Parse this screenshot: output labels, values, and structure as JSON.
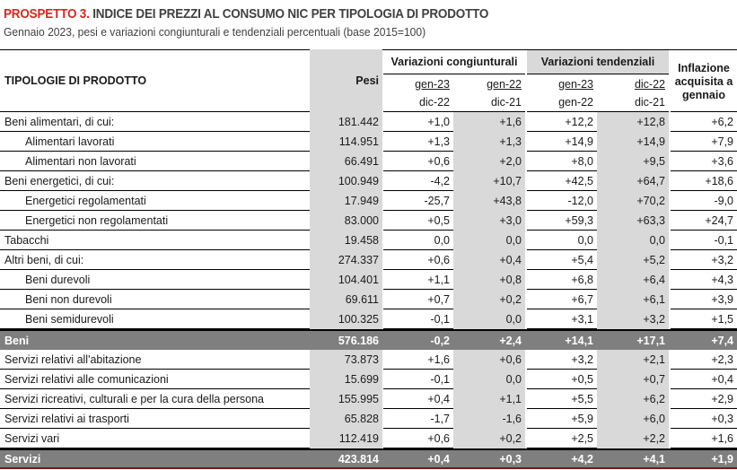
{
  "header": {
    "title_prefix": "PROSPETTO 3.",
    "title": " INDICE DEI PREZZI AL CONSUMO NIC PER TIPOLOGIA DI PRODOTTO",
    "subtitle": "Gennaio 2023, pesi e variazioni congiunturali e tendenziali percentuali (base 2015=100)"
  },
  "table": {
    "columns": {
      "label": "TIPOLOGIE DI PRODOTTO",
      "pesi": "Pesi",
      "congiunturali": "Variazioni congiunturali",
      "tendenziali": "Variazioni tendenziali",
      "inflazione": "Inflazione acquisita a gennaio",
      "sub": [
        {
          "top": "gen-23",
          "bottom": "dic-22"
        },
        {
          "top": "gen-22",
          "bottom": "dic-21"
        },
        {
          "top": "gen-23",
          "bottom": "gen-22"
        },
        {
          "top": "dic-22",
          "bottom": "dic-21"
        }
      ]
    },
    "rows": [
      {
        "label": "Beni alimentari, di cui:",
        "pesi": "181.442",
        "v": [
          "+1,0",
          "+1,6",
          "+12,2",
          "+12,8",
          "+6,2"
        ]
      },
      {
        "label": "Alimentari lavorati",
        "pesi": "114.951",
        "v": [
          "+1,3",
          "+1,3",
          "+14,9",
          "+14,9",
          "+7,9"
        ]
      },
      {
        "label": "Alimentari non lavorati",
        "pesi": "66.491",
        "v": [
          "+0,6",
          "+2,0",
          "+8,0",
          "+9,5",
          "+3,6"
        ]
      },
      {
        "label": "Beni energetici, di cui:",
        "pesi": "100.949",
        "v": [
          "-4,2",
          "+10,7",
          "+42,5",
          "+64,7",
          "+18,6"
        ]
      },
      {
        "label": "Energetici regolamentati",
        "pesi": "17.949",
        "v": [
          "-25,7",
          "+43,8",
          "-12,0",
          "+70,2",
          "-9,0"
        ]
      },
      {
        "label": "Energetici non regolamentati",
        "pesi": "83.000",
        "v": [
          "+0,5",
          "+3,0",
          "+59,3",
          "+63,3",
          "+24,7"
        ]
      },
      {
        "label": "Tabacchi",
        "pesi": "19.458",
        "v": [
          "0,0",
          "0,0",
          "0,0",
          "0,0",
          "-0,1"
        ]
      },
      {
        "label": "Altri beni, di cui:",
        "pesi": "274.337",
        "v": [
          "+0,6",
          "+0,4",
          "+5,4",
          "+5,2",
          "+3,2"
        ]
      },
      {
        "label": "Beni durevoli",
        "pesi": "104.401",
        "v": [
          "+1,1",
          "+0,8",
          "+6,8",
          "+6,4",
          "+4,3"
        ]
      },
      {
        "label": "Beni non durevoli",
        "pesi": "69.611",
        "v": [
          "+0,7",
          "+0,2",
          "+6,7",
          "+6,1",
          "+3,9"
        ]
      },
      {
        "label": "Beni semidurevoli",
        "pesi": "100.325",
        "v": [
          "-0,1",
          "0,0",
          "+3,1",
          "+3,2",
          "+1,5"
        ]
      },
      {
        "label": "Beni",
        "pesi": "576.186",
        "v": [
          "-0,2",
          "+2,4",
          "+14,1",
          "+17,1",
          "+7,4"
        ]
      },
      {
        "label": "Servizi relativi all'abitazione",
        "pesi": "73.873",
        "v": [
          "+1,6",
          "+0,6",
          "+3,2",
          "+2,1",
          "+2,3"
        ]
      },
      {
        "label": "Servizi relativi alle comunicazioni",
        "pesi": "15.699",
        "v": [
          "-0,1",
          "0,0",
          "+0,5",
          "+0,7",
          "+0,4"
        ]
      },
      {
        "label": "Servizi ricreativi, culturali e per la cura della persona",
        "pesi": "155.995",
        "v": [
          "+0,4",
          "+1,1",
          "+5,5",
          "+6,2",
          "+2,9"
        ]
      },
      {
        "label": "Servizi relativi ai trasporti",
        "pesi": "65.828",
        "v": [
          "-1,7",
          "-1,6",
          "+5,9",
          "+6,0",
          "+0,3"
        ]
      },
      {
        "label": "Servizi vari",
        "pesi": "112.419",
        "v": [
          "+0,6",
          "+0,2",
          "+2,5",
          "+2,2",
          "+1,6"
        ]
      },
      {
        "label": "Servizi",
        "pesi": "423.814",
        "v": [
          "+0,4",
          "+0,3",
          "+4,2",
          "+4,1",
          "+1,9"
        ]
      }
    ]
  },
  "colors": {
    "title_accent": "#d7281e",
    "shade": "#d9d9d9",
    "total_row": "#7f7f7f",
    "final_border": "#7a1616"
  }
}
